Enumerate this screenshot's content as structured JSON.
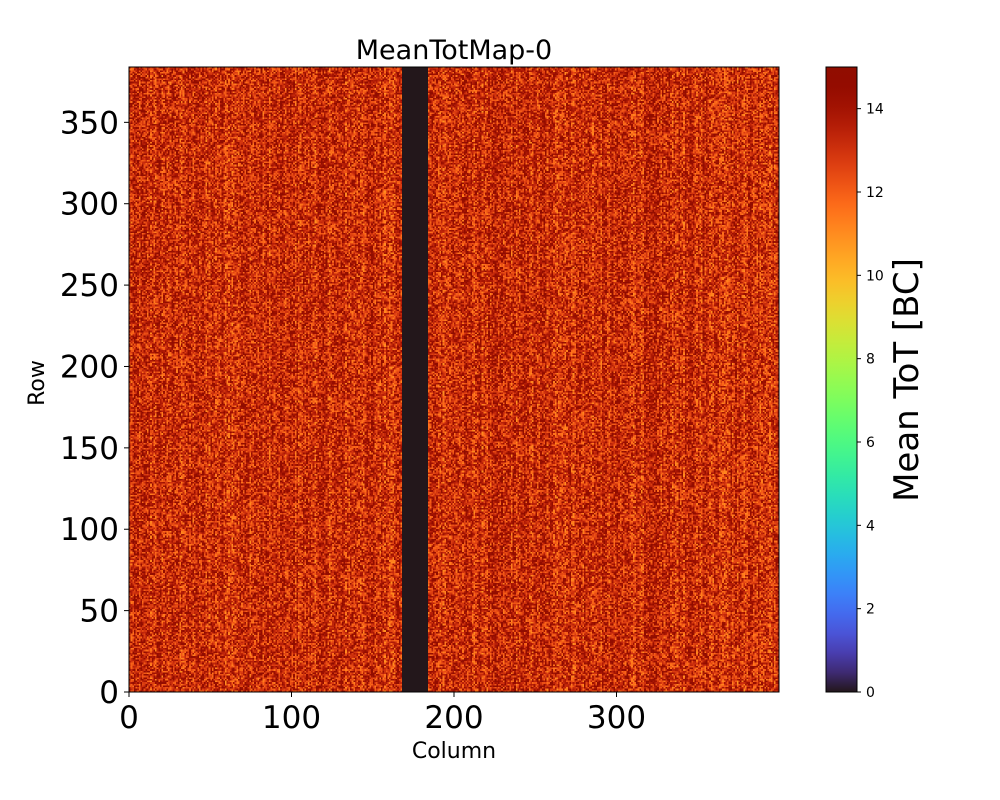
{
  "chart_data": {
    "type": "heatmap",
    "title": "MeanTotMap-0",
    "xlabel": "Column",
    "ylabel": "Row",
    "xlim": [
      0,
      400
    ],
    "ylim": [
      0,
      384
    ],
    "n_columns": 400,
    "n_rows": 384,
    "x_ticks": [
      0,
      100,
      200,
      300
    ],
    "x_tick_labels": [
      "0",
      "100",
      "200",
      "300"
    ],
    "y_ticks": [
      0,
      50,
      100,
      150,
      200,
      250,
      300,
      350
    ],
    "y_tick_labels": [
      "0",
      "50",
      "100",
      "150",
      "200",
      "250",
      "300",
      "350"
    ],
    "colormap": "turbo",
    "typical_value_range": [
      11,
      15
    ],
    "typical_mean": 13.2,
    "zero_band_columns": [
      168,
      184
    ],
    "zero_band_value": 0,
    "colorbar": {
      "label": "Mean ToT [BC]",
      "vmin": 0,
      "vmax": 15,
      "ticks": [
        0,
        2,
        4,
        6,
        8,
        10,
        12,
        14
      ],
      "tick_labels": [
        "0",
        "2",
        "4",
        "6",
        "8",
        "10",
        "12",
        "14"
      ]
    }
  }
}
